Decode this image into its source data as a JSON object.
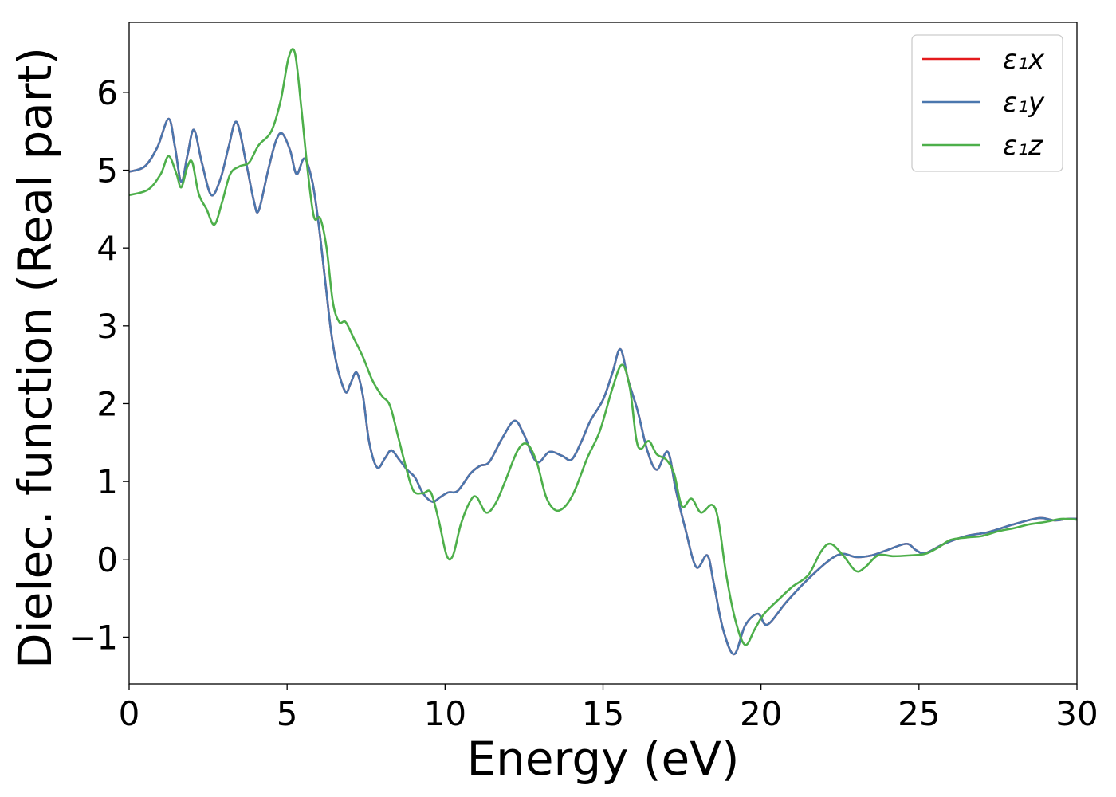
{
  "chart_data": {
    "type": "line",
    "xlabel": "Energy (eV)",
    "ylabel": "Dielec. function (Real part)",
    "xlim": [
      0,
      30
    ],
    "ylim": [
      -1.6,
      6.9
    ],
    "x_ticks": [
      0,
      5,
      10,
      15,
      20,
      25,
      30
    ],
    "x_tick_labels": [
      "0",
      "5",
      "10",
      "15",
      "20",
      "25",
      "30"
    ],
    "y_ticks": [
      -1,
      0,
      1,
      2,
      3,
      4,
      5,
      6
    ],
    "y_tick_labels": [
      "−1",
      "0",
      "1",
      "2",
      "3",
      "4",
      "5",
      "6"
    ],
    "grid": false,
    "legend_position": "top-right",
    "series": [
      {
        "name": "ε₁x",
        "color": "#e41a1c",
        "points": [
          [
            0,
            4.98
          ],
          [
            0.5,
            5.05
          ],
          [
            0.9,
            5.3
          ],
          [
            1.25,
            5.66
          ],
          [
            1.45,
            5.3
          ],
          [
            1.65,
            4.85
          ],
          [
            1.85,
            5.2
          ],
          [
            2.05,
            5.52
          ],
          [
            2.3,
            5.1
          ],
          [
            2.6,
            4.68
          ],
          [
            2.9,
            4.9
          ],
          [
            3.15,
            5.3
          ],
          [
            3.4,
            5.62
          ],
          [
            3.7,
            5.1
          ],
          [
            3.95,
            4.6
          ],
          [
            4.1,
            4.48
          ],
          [
            4.4,
            5.0
          ],
          [
            4.65,
            5.38
          ],
          [
            4.85,
            5.47
          ],
          [
            5.1,
            5.25
          ],
          [
            5.3,
            4.95
          ],
          [
            5.55,
            5.15
          ],
          [
            5.8,
            4.85
          ],
          [
            6.0,
            4.3
          ],
          [
            6.2,
            3.6
          ],
          [
            6.4,
            2.9
          ],
          [
            6.6,
            2.45
          ],
          [
            6.85,
            2.15
          ],
          [
            7.0,
            2.25
          ],
          [
            7.2,
            2.4
          ],
          [
            7.4,
            2.1
          ],
          [
            7.6,
            1.5
          ],
          [
            7.85,
            1.18
          ],
          [
            8.1,
            1.3
          ],
          [
            8.3,
            1.4
          ],
          [
            8.55,
            1.28
          ],
          [
            8.8,
            1.15
          ],
          [
            9.05,
            1.05
          ],
          [
            9.3,
            0.85
          ],
          [
            9.6,
            0.74
          ],
          [
            9.85,
            0.8
          ],
          [
            10.1,
            0.86
          ],
          [
            10.4,
            0.88
          ],
          [
            10.8,
            1.1
          ],
          [
            11.1,
            1.2
          ],
          [
            11.4,
            1.25
          ],
          [
            11.8,
            1.55
          ],
          [
            12.2,
            1.78
          ],
          [
            12.5,
            1.6
          ],
          [
            12.9,
            1.25
          ],
          [
            13.3,
            1.38
          ],
          [
            13.7,
            1.33
          ],
          [
            14.0,
            1.28
          ],
          [
            14.3,
            1.5
          ],
          [
            14.6,
            1.78
          ],
          [
            15.0,
            2.05
          ],
          [
            15.3,
            2.4
          ],
          [
            15.55,
            2.7
          ],
          [
            15.8,
            2.3
          ],
          [
            16.1,
            1.9
          ],
          [
            16.4,
            1.4
          ],
          [
            16.7,
            1.15
          ],
          [
            17.05,
            1.38
          ],
          [
            17.3,
            0.9
          ],
          [
            17.6,
            0.4
          ],
          [
            17.95,
            -0.1
          ],
          [
            18.3,
            0.05
          ],
          [
            18.5,
            -0.3
          ],
          [
            18.8,
            -0.9
          ],
          [
            19.15,
            -1.22
          ],
          [
            19.5,
            -0.85
          ],
          [
            19.9,
            -0.7
          ],
          [
            20.2,
            -0.84
          ],
          [
            20.8,
            -0.55
          ],
          [
            21.5,
            -0.25
          ],
          [
            22.2,
            0.0
          ],
          [
            22.6,
            0.07
          ],
          [
            23.0,
            0.03
          ],
          [
            23.5,
            0.05
          ],
          [
            24.0,
            0.12
          ],
          [
            24.6,
            0.2
          ],
          [
            24.9,
            0.12
          ],
          [
            25.2,
            0.08
          ],
          [
            25.8,
            0.2
          ],
          [
            26.5,
            0.3
          ],
          [
            27.2,
            0.35
          ],
          [
            28.0,
            0.45
          ],
          [
            28.8,
            0.53
          ],
          [
            29.3,
            0.5
          ],
          [
            29.7,
            0.52
          ],
          [
            30,
            0.52
          ]
        ]
      },
      {
        "name": "ε₁y",
        "color": "#4a77ae",
        "points": [
          [
            0,
            4.98
          ],
          [
            0.5,
            5.05
          ],
          [
            0.9,
            5.3
          ],
          [
            1.25,
            5.66
          ],
          [
            1.45,
            5.3
          ],
          [
            1.65,
            4.85
          ],
          [
            1.85,
            5.2
          ],
          [
            2.05,
            5.52
          ],
          [
            2.3,
            5.1
          ],
          [
            2.6,
            4.68
          ],
          [
            2.9,
            4.9
          ],
          [
            3.15,
            5.3
          ],
          [
            3.4,
            5.62
          ],
          [
            3.7,
            5.1
          ],
          [
            3.95,
            4.6
          ],
          [
            4.1,
            4.48
          ],
          [
            4.4,
            5.0
          ],
          [
            4.65,
            5.38
          ],
          [
            4.85,
            5.47
          ],
          [
            5.1,
            5.25
          ],
          [
            5.3,
            4.95
          ],
          [
            5.55,
            5.15
          ],
          [
            5.8,
            4.85
          ],
          [
            6.0,
            4.3
          ],
          [
            6.2,
            3.6
          ],
          [
            6.4,
            2.9
          ],
          [
            6.6,
            2.45
          ],
          [
            6.85,
            2.15
          ],
          [
            7.0,
            2.25
          ],
          [
            7.2,
            2.4
          ],
          [
            7.4,
            2.1
          ],
          [
            7.6,
            1.5
          ],
          [
            7.85,
            1.18
          ],
          [
            8.1,
            1.3
          ],
          [
            8.3,
            1.4
          ],
          [
            8.55,
            1.28
          ],
          [
            8.8,
            1.15
          ],
          [
            9.05,
            1.05
          ],
          [
            9.3,
            0.85
          ],
          [
            9.6,
            0.74
          ],
          [
            9.85,
            0.8
          ],
          [
            10.1,
            0.86
          ],
          [
            10.4,
            0.88
          ],
          [
            10.8,
            1.1
          ],
          [
            11.1,
            1.2
          ],
          [
            11.4,
            1.25
          ],
          [
            11.8,
            1.55
          ],
          [
            12.2,
            1.78
          ],
          [
            12.5,
            1.6
          ],
          [
            12.9,
            1.25
          ],
          [
            13.3,
            1.38
          ],
          [
            13.7,
            1.33
          ],
          [
            14.0,
            1.28
          ],
          [
            14.3,
            1.5
          ],
          [
            14.6,
            1.78
          ],
          [
            15.0,
            2.05
          ],
          [
            15.3,
            2.4
          ],
          [
            15.55,
            2.7
          ],
          [
            15.8,
            2.3
          ],
          [
            16.1,
            1.9
          ],
          [
            16.4,
            1.4
          ],
          [
            16.7,
            1.15
          ],
          [
            17.05,
            1.38
          ],
          [
            17.3,
            0.9
          ],
          [
            17.6,
            0.4
          ],
          [
            17.95,
            -0.1
          ],
          [
            18.3,
            0.05
          ],
          [
            18.5,
            -0.3
          ],
          [
            18.8,
            -0.9
          ],
          [
            19.15,
            -1.22
          ],
          [
            19.5,
            -0.85
          ],
          [
            19.9,
            -0.7
          ],
          [
            20.2,
            -0.84
          ],
          [
            20.8,
            -0.55
          ],
          [
            21.5,
            -0.25
          ],
          [
            22.2,
            0.0
          ],
          [
            22.6,
            0.07
          ],
          [
            23.0,
            0.03
          ],
          [
            23.5,
            0.05
          ],
          [
            24.0,
            0.12
          ],
          [
            24.6,
            0.2
          ],
          [
            24.9,
            0.12
          ],
          [
            25.2,
            0.08
          ],
          [
            25.8,
            0.2
          ],
          [
            26.5,
            0.3
          ],
          [
            27.2,
            0.35
          ],
          [
            28.0,
            0.45
          ],
          [
            28.8,
            0.53
          ],
          [
            29.3,
            0.5
          ],
          [
            29.7,
            0.52
          ],
          [
            30,
            0.52
          ]
        ]
      },
      {
        "name": "ε₁z",
        "color": "#4daf4a",
        "points": [
          [
            0,
            4.68
          ],
          [
            0.6,
            4.75
          ],
          [
            1.0,
            4.95
          ],
          [
            1.25,
            5.18
          ],
          [
            1.5,
            4.95
          ],
          [
            1.65,
            4.78
          ],
          [
            1.85,
            5.05
          ],
          [
            2.0,
            5.1
          ],
          [
            2.2,
            4.7
          ],
          [
            2.45,
            4.5
          ],
          [
            2.7,
            4.3
          ],
          [
            2.95,
            4.6
          ],
          [
            3.2,
            4.95
          ],
          [
            3.5,
            5.05
          ],
          [
            3.8,
            5.1
          ],
          [
            4.1,
            5.32
          ],
          [
            4.5,
            5.5
          ],
          [
            4.8,
            5.9
          ],
          [
            5.05,
            6.45
          ],
          [
            5.25,
            6.5
          ],
          [
            5.45,
            5.8
          ],
          [
            5.65,
            5.0
          ],
          [
            5.85,
            4.4
          ],
          [
            6.05,
            4.38
          ],
          [
            6.25,
            4.0
          ],
          [
            6.45,
            3.3
          ],
          [
            6.65,
            3.05
          ],
          [
            6.85,
            3.05
          ],
          [
            7.1,
            2.85
          ],
          [
            7.4,
            2.6
          ],
          [
            7.7,
            2.3
          ],
          [
            8.0,
            2.1
          ],
          [
            8.25,
            1.98
          ],
          [
            8.5,
            1.6
          ],
          [
            8.75,
            1.2
          ],
          [
            9.0,
            0.88
          ],
          [
            9.3,
            0.85
          ],
          [
            9.55,
            0.86
          ],
          [
            9.8,
            0.5
          ],
          [
            10.05,
            0.05
          ],
          [
            10.25,
            0.05
          ],
          [
            10.5,
            0.45
          ],
          [
            10.8,
            0.75
          ],
          [
            11.0,
            0.8
          ],
          [
            11.3,
            0.6
          ],
          [
            11.6,
            0.72
          ],
          [
            11.9,
            1.0
          ],
          [
            12.3,
            1.4
          ],
          [
            12.6,
            1.48
          ],
          [
            12.9,
            1.25
          ],
          [
            13.2,
            0.8
          ],
          [
            13.5,
            0.63
          ],
          [
            13.8,
            0.68
          ],
          [
            14.1,
            0.88
          ],
          [
            14.5,
            1.3
          ],
          [
            14.9,
            1.65
          ],
          [
            15.3,
            2.2
          ],
          [
            15.6,
            2.5
          ],
          [
            15.85,
            2.2
          ],
          [
            16.05,
            1.55
          ],
          [
            16.2,
            1.42
          ],
          [
            16.45,
            1.52
          ],
          [
            16.7,
            1.35
          ],
          [
            17.0,
            1.28
          ],
          [
            17.25,
            1.1
          ],
          [
            17.5,
            0.68
          ],
          [
            17.8,
            0.78
          ],
          [
            18.1,
            0.6
          ],
          [
            18.45,
            0.7
          ],
          [
            18.65,
            0.5
          ],
          [
            18.9,
            -0.2
          ],
          [
            19.2,
            -0.8
          ],
          [
            19.5,
            -1.1
          ],
          [
            19.8,
            -0.9
          ],
          [
            20.1,
            -0.7
          ],
          [
            20.6,
            -0.5
          ],
          [
            21.0,
            -0.35
          ],
          [
            21.5,
            -0.2
          ],
          [
            21.9,
            0.1
          ],
          [
            22.2,
            0.2
          ],
          [
            22.6,
            0.05
          ],
          [
            23.0,
            -0.15
          ],
          [
            23.3,
            -0.1
          ],
          [
            23.7,
            0.05
          ],
          [
            24.2,
            0.04
          ],
          [
            24.7,
            0.05
          ],
          [
            25.2,
            0.07
          ],
          [
            25.6,
            0.15
          ],
          [
            26.0,
            0.25
          ],
          [
            26.5,
            0.28
          ],
          [
            27.0,
            0.3
          ],
          [
            27.5,
            0.36
          ],
          [
            28.0,
            0.4
          ],
          [
            28.5,
            0.45
          ],
          [
            29.0,
            0.48
          ],
          [
            29.5,
            0.52
          ],
          [
            30,
            0.51
          ]
        ]
      }
    ]
  }
}
